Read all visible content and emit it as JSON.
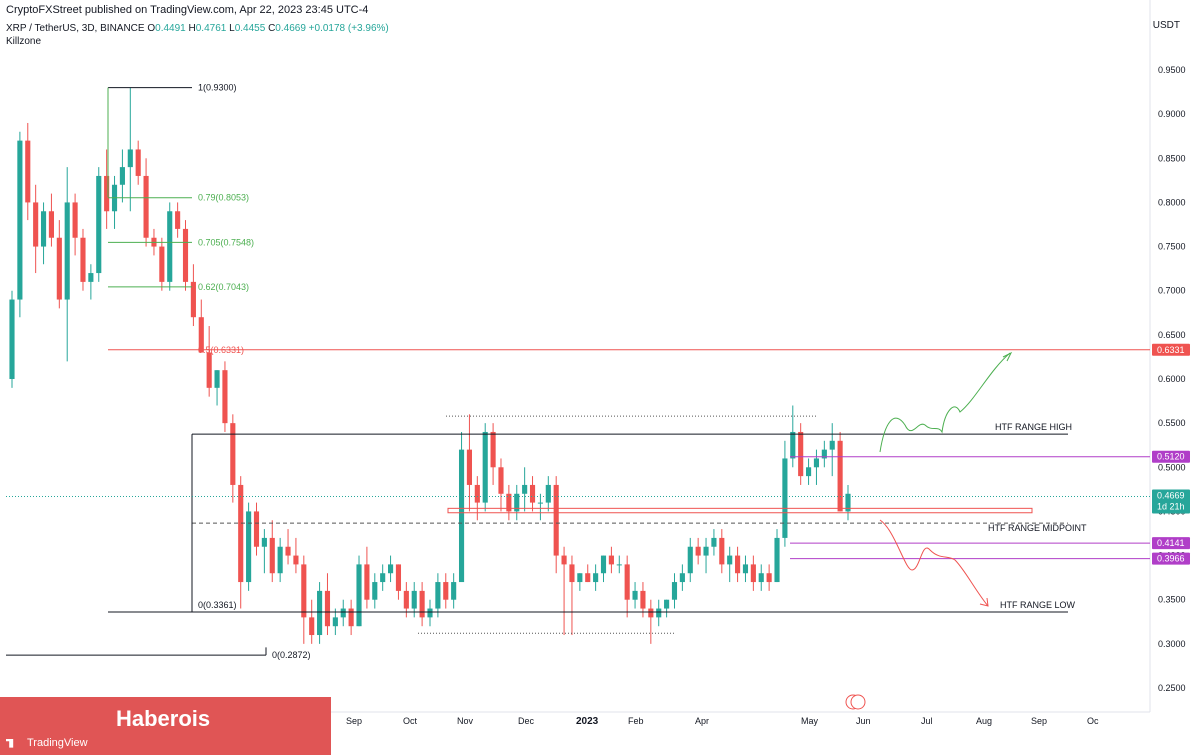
{
  "header": {
    "publisher": "CryptoFXStreet published on TradingView.com, Apr 22, 2023 23:45 UTC-4",
    "symbol": "XRP / TetherUS, 3D, BINANCE",
    "ohlc": {
      "open_label": "O",
      "open": "0.4491",
      "high_label": "H",
      "high": "0.4761",
      "low_label": "L",
      "low": "0.4455",
      "close_label": "C",
      "close": "0.4669",
      "change": "+0.0178 (+3.96%)"
    },
    "indicator": "Killzone",
    "unit": "USDT"
  },
  "badge": {
    "name": "Haberois",
    "platform": "TradingView"
  },
  "colors": {
    "up": "#26a69a",
    "down": "#ef5350",
    "fib_green": "#4caf50",
    "fib_red": "#ef5350",
    "level_purple": "#b03ec8",
    "range_line": "#131722"
  },
  "chart_data": {
    "type": "candlestick",
    "ylim": [
      0.22,
      0.98
    ],
    "y_ticks": [
      "0.2500",
      "0.3000",
      "0.3500",
      "0.4000",
      "0.4500",
      "0.5000",
      "0.5500",
      "0.6000",
      "0.6500",
      "0.7000",
      "0.7500",
      "0.8000",
      "0.8500",
      "0.9000",
      "0.9500"
    ],
    "x_ticks": [
      "Feb",
      "Apr",
      "May",
      "Jun",
      "Jul",
      "Aug",
      "Sep",
      "Oct",
      "Nov",
      "Dec",
      "2023",
      "Feb",
      "Apr",
      "May",
      "Jun",
      "Jul",
      "Aug",
      "Sep",
      "Oct"
    ],
    "visible_x_ticks": [
      "Feb",
      "Jun",
      "Jul",
      "Aug",
      "Sep",
      "Oct",
      "Nov",
      "Dec",
      "2023",
      "Feb",
      "Apr",
      "May",
      "Jun",
      "Jul",
      "Aug",
      "Sep",
      "Oc"
    ],
    "last_price_label": "0.4669",
    "countdown": "1d 21h",
    "candles": [
      [
        0.6,
        0.7,
        0.59,
        0.69
      ],
      [
        0.69,
        0.88,
        0.67,
        0.87
      ],
      [
        0.87,
        0.89,
        0.78,
        0.8
      ],
      [
        0.8,
        0.82,
        0.72,
        0.75
      ],
      [
        0.75,
        0.8,
        0.73,
        0.79
      ],
      [
        0.79,
        0.81,
        0.75,
        0.76
      ],
      [
        0.76,
        0.78,
        0.68,
        0.69
      ],
      [
        0.69,
        0.84,
        0.62,
        0.8
      ],
      [
        0.8,
        0.81,
        0.74,
        0.76
      ],
      [
        0.76,
        0.77,
        0.7,
        0.71
      ],
      [
        0.71,
        0.73,
        0.69,
        0.72
      ],
      [
        0.72,
        0.84,
        0.71,
        0.83
      ],
      [
        0.83,
        0.86,
        0.77,
        0.79
      ],
      [
        0.79,
        0.83,
        0.77,
        0.82
      ],
      [
        0.82,
        0.86,
        0.8,
        0.84
      ],
      [
        0.84,
        0.93,
        0.79,
        0.86
      ],
      [
        0.86,
        0.87,
        0.82,
        0.83
      ],
      [
        0.83,
        0.85,
        0.75,
        0.76
      ],
      [
        0.76,
        0.77,
        0.74,
        0.75
      ],
      [
        0.75,
        0.76,
        0.7,
        0.71
      ],
      [
        0.71,
        0.8,
        0.7,
        0.79
      ],
      [
        0.79,
        0.8,
        0.76,
        0.77
      ],
      [
        0.77,
        0.78,
        0.7,
        0.71
      ],
      [
        0.71,
        0.73,
        0.66,
        0.67
      ],
      [
        0.67,
        0.69,
        0.63,
        0.63
      ],
      [
        0.63,
        0.66,
        0.58,
        0.59
      ],
      [
        0.59,
        0.61,
        0.57,
        0.61
      ],
      [
        0.61,
        0.62,
        0.54,
        0.55
      ],
      [
        0.55,
        0.56,
        0.46,
        0.48
      ],
      [
        0.48,
        0.49,
        0.34,
        0.37
      ],
      [
        0.37,
        0.46,
        0.36,
        0.45
      ],
      [
        0.45,
        0.46,
        0.4,
        0.41
      ],
      [
        0.41,
        0.43,
        0.38,
        0.42
      ],
      [
        0.42,
        0.44,
        0.37,
        0.38
      ],
      [
        0.38,
        0.42,
        0.37,
        0.41
      ],
      [
        0.41,
        0.43,
        0.39,
        0.4
      ],
      [
        0.4,
        0.42,
        0.38,
        0.39
      ],
      [
        0.39,
        0.4,
        0.3,
        0.33
      ],
      [
        0.33,
        0.35,
        0.3,
        0.31
      ],
      [
        0.31,
        0.37,
        0.3,
        0.36
      ],
      [
        0.36,
        0.38,
        0.31,
        0.32
      ],
      [
        0.32,
        0.34,
        0.31,
        0.33
      ],
      [
        0.33,
        0.35,
        0.32,
        0.34
      ],
      [
        0.34,
        0.35,
        0.31,
        0.32
      ],
      [
        0.32,
        0.4,
        0.32,
        0.39
      ],
      [
        0.39,
        0.41,
        0.34,
        0.35
      ],
      [
        0.35,
        0.38,
        0.34,
        0.37
      ],
      [
        0.37,
        0.39,
        0.36,
        0.38
      ],
      [
        0.38,
        0.4,
        0.37,
        0.39
      ],
      [
        0.39,
        0.39,
        0.35,
        0.36
      ],
      [
        0.36,
        0.37,
        0.33,
        0.34
      ],
      [
        0.34,
        0.37,
        0.33,
        0.36
      ],
      [
        0.36,
        0.37,
        0.32,
        0.33
      ],
      [
        0.33,
        0.35,
        0.32,
        0.34
      ],
      [
        0.34,
        0.38,
        0.33,
        0.37
      ],
      [
        0.37,
        0.38,
        0.34,
        0.35
      ],
      [
        0.35,
        0.38,
        0.34,
        0.37
      ],
      [
        0.37,
        0.54,
        0.37,
        0.52
      ],
      [
        0.52,
        0.56,
        0.45,
        0.48
      ],
      [
        0.48,
        0.49,
        0.44,
        0.46
      ],
      [
        0.46,
        0.55,
        0.45,
        0.54
      ],
      [
        0.54,
        0.55,
        0.48,
        0.5
      ],
      [
        0.5,
        0.51,
        0.45,
        0.47
      ],
      [
        0.47,
        0.48,
        0.44,
        0.45
      ],
      [
        0.45,
        0.48,
        0.44,
        0.47
      ],
      [
        0.47,
        0.5,
        0.45,
        0.48
      ],
      [
        0.48,
        0.49,
        0.45,
        0.46
      ],
      [
        0.46,
        0.47,
        0.44,
        0.46
      ],
      [
        0.46,
        0.49,
        0.45,
        0.48
      ],
      [
        0.48,
        0.49,
        0.38,
        0.4
      ],
      [
        0.4,
        0.41,
        0.31,
        0.39
      ],
      [
        0.39,
        0.4,
        0.31,
        0.37
      ],
      [
        0.37,
        0.38,
        0.36,
        0.38
      ],
      [
        0.38,
        0.39,
        0.37,
        0.37
      ],
      [
        0.37,
        0.39,
        0.36,
        0.38
      ],
      [
        0.38,
        0.4,
        0.37,
        0.4
      ],
      [
        0.4,
        0.41,
        0.38,
        0.39
      ],
      [
        0.39,
        0.4,
        0.38,
        0.39
      ],
      [
        0.39,
        0.4,
        0.33,
        0.35
      ],
      [
        0.35,
        0.37,
        0.34,
        0.36
      ],
      [
        0.36,
        0.37,
        0.33,
        0.34
      ],
      [
        0.34,
        0.35,
        0.3,
        0.33
      ],
      [
        0.33,
        0.35,
        0.32,
        0.34
      ],
      [
        0.34,
        0.35,
        0.33,
        0.35
      ],
      [
        0.35,
        0.38,
        0.34,
        0.37
      ],
      [
        0.37,
        0.39,
        0.36,
        0.38
      ],
      [
        0.38,
        0.42,
        0.37,
        0.41
      ],
      [
        0.41,
        0.42,
        0.39,
        0.4
      ],
      [
        0.4,
        0.42,
        0.38,
        0.41
      ],
      [
        0.41,
        0.43,
        0.4,
        0.42
      ],
      [
        0.42,
        0.43,
        0.38,
        0.39
      ],
      [
        0.39,
        0.41,
        0.37,
        0.4
      ],
      [
        0.4,
        0.41,
        0.37,
        0.38
      ],
      [
        0.38,
        0.4,
        0.37,
        0.39
      ],
      [
        0.39,
        0.4,
        0.36,
        0.37
      ],
      [
        0.37,
        0.39,
        0.36,
        0.38
      ],
      [
        0.38,
        0.39,
        0.36,
        0.37
      ],
      [
        0.37,
        0.43,
        0.37,
        0.42
      ],
      [
        0.42,
        0.53,
        0.41,
        0.51
      ],
      [
        0.51,
        0.57,
        0.5,
        0.54
      ],
      [
        0.54,
        0.55,
        0.48,
        0.49
      ],
      [
        0.49,
        0.51,
        0.48,
        0.5
      ],
      [
        0.5,
        0.52,
        0.48,
        0.51
      ],
      [
        0.51,
        0.53,
        0.5,
        0.52
      ],
      [
        0.52,
        0.55,
        0.49,
        0.53
      ],
      [
        0.53,
        0.54,
        0.45,
        0.45
      ],
      [
        0.45,
        0.48,
        0.44,
        0.47
      ]
    ],
    "horizontal_levels": [
      {
        "label": "1(0.9300)",
        "value": 0.93,
        "kind": "fib"
      },
      {
        "label": "0.79(0.8053)",
        "value": 0.8053,
        "kind": "fib-green"
      },
      {
        "label": "0.705(0.7548)",
        "value": 0.7548,
        "kind": "fib-green"
      },
      {
        "label": "0.62(0.7043)",
        "value": 0.7043,
        "kind": "fib-green"
      },
      {
        "label": "0.5(0.6331)",
        "value": 0.6331,
        "kind": "fib-red"
      },
      {
        "label": "0(0.3361)",
        "value": 0.3361,
        "kind": "fib"
      },
      {
        "label": "0(0.2872)",
        "value": 0.2872,
        "kind": "fib"
      },
      {
        "label": "HTF RANGE HIGH",
        "value": 0.5376,
        "kind": "range"
      },
      {
        "label": "HTF RANGE MIDPOINT",
        "value": 0.4368,
        "kind": "range-dashed"
      },
      {
        "label": "HTF RANGE LOW",
        "value": 0.3361,
        "kind": "range"
      }
    ],
    "price_tags": [
      {
        "label": "0.6331",
        "value": 0.6331,
        "color": "#ef5350"
      },
      {
        "label": "0.5120",
        "value": 0.512,
        "color": "#b03ec8"
      },
      {
        "label": "0.4141",
        "value": 0.4141,
        "color": "#b03ec8"
      },
      {
        "label": "0.3966",
        "value": 0.3966,
        "color": "#b03ec8"
      }
    ]
  }
}
